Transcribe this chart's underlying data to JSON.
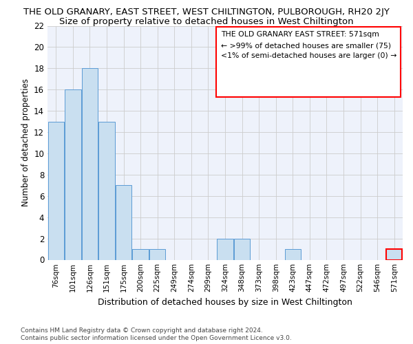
{
  "title": "THE OLD GRANARY, EAST STREET, WEST CHILTINGTON, PULBOROUGH, RH20 2JY",
  "subtitle": "Size of property relative to detached houses in West Chiltington",
  "xlabel": "Distribution of detached houses by size in West Chiltington",
  "ylabel": "Number of detached properties",
  "categories": [
    "76sqm",
    "101sqm",
    "126sqm",
    "151sqm",
    "175sqm",
    "200sqm",
    "225sqm",
    "249sqm",
    "274sqm",
    "299sqm",
    "324sqm",
    "348sqm",
    "373sqm",
    "398sqm",
    "423sqm",
    "447sqm",
    "472sqm",
    "497sqm",
    "522sqm",
    "546sqm",
    "571sqm"
  ],
  "values": [
    13,
    16,
    18,
    13,
    7,
    1,
    1,
    0,
    0,
    0,
    2,
    2,
    0,
    0,
    1,
    0,
    0,
    0,
    0,
    0,
    1
  ],
  "bar_color": "#c9dff0",
  "bar_edge_color": "#5b9bd5",
  "highlight_index": 20,
  "highlight_bar_edge_color": "#ff0000",
  "ylim": [
    0,
    22
  ],
  "yticks": [
    0,
    2,
    4,
    6,
    8,
    10,
    12,
    14,
    16,
    18,
    20,
    22
  ],
  "legend_title": "THE OLD GRANARY EAST STREET: 571sqm",
  "legend_line1": "← >99% of detached houses are smaller (75)",
  "legend_line2": "<1% of semi-detached houses are larger (0) →",
  "footer_line1": "Contains HM Land Registry data © Crown copyright and database right 2024.",
  "footer_line2": "Contains public sector information licensed under the Open Government Licence v3.0.",
  "title_fontsize": 9.5,
  "subtitle_fontsize": 9.5,
  "grid_color": "#cccccc",
  "background_color": "#ffffff",
  "plot_bg_color": "#eef2fb"
}
